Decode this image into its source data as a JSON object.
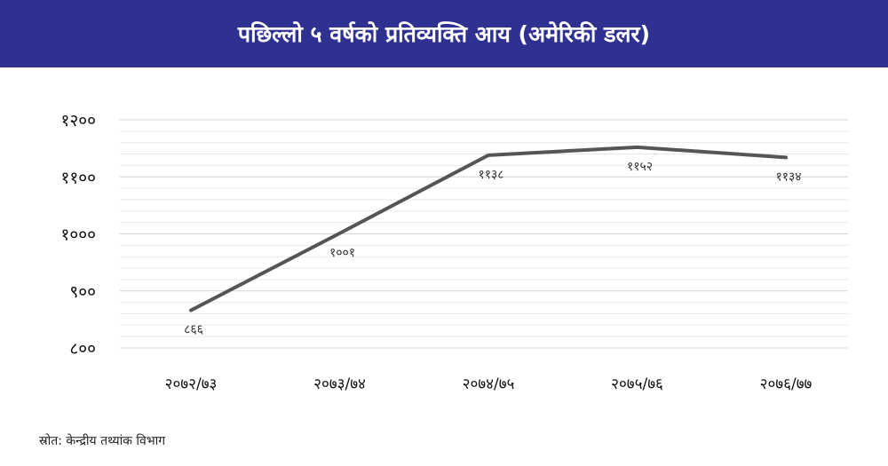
{
  "header": {
    "title": "पछिल्लो ५ वर्षको प्रतिव्यक्ति आय (अमेरिकी डलर)"
  },
  "source": "स्रोत: केन्द्रीय तथ्यांक विभाग",
  "colors": {
    "banner": "#2f3191",
    "line": "#555555",
    "grid": "#dddddd"
  },
  "chart_data": {
    "type": "line",
    "title": "पछिल्लो ५ वर्षको प्रतिव्यक्ति आय (अमेरिकी डलर)",
    "categories": [
      "२०७२/७३",
      "२०७३/७४",
      "२०७४/७५",
      "२०७५/७६",
      "२०७६/७७"
    ],
    "values": [
      866,
      1001,
      1138,
      1152,
      1134
    ],
    "data_labels": [
      "८६६",
      "१००१",
      "११३८",
      "११५२",
      "११३४"
    ],
    "yticks": [
      800,
      900,
      1000,
      1100,
      1200
    ],
    "ytick_labels": [
      "८००",
      "९००",
      "१०००",
      "११००",
      "१२००"
    ],
    "ylim": [
      800,
      1200
    ],
    "xlabel": "",
    "ylabel": "",
    "grid": true,
    "legend": "none"
  }
}
